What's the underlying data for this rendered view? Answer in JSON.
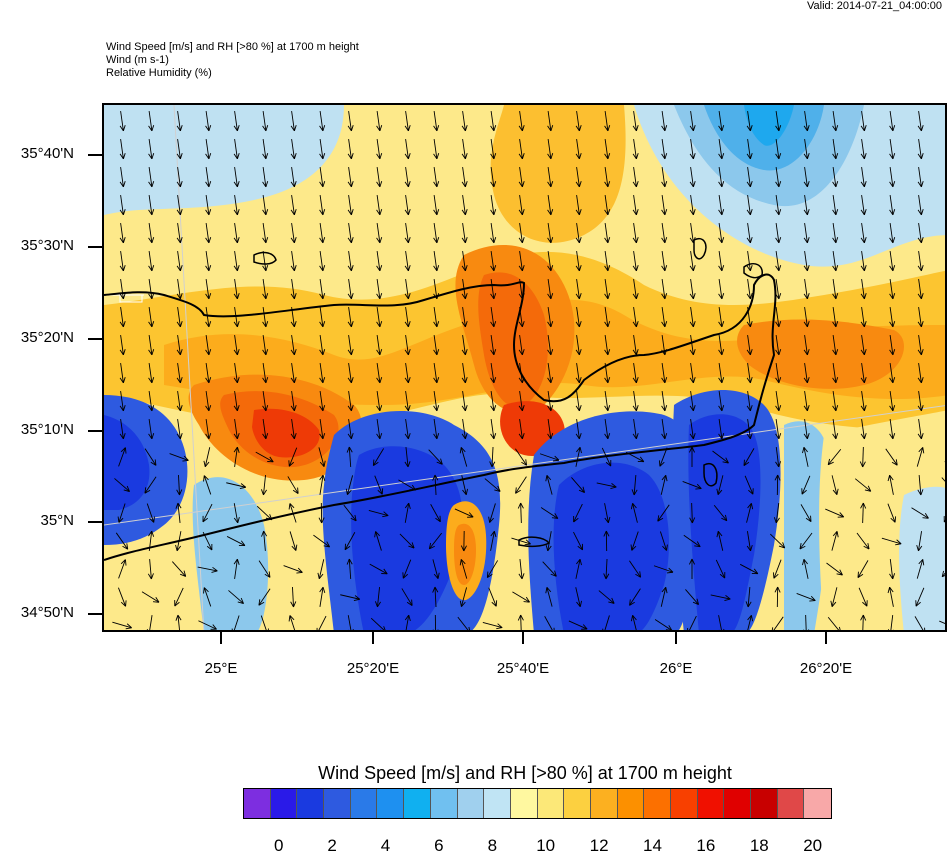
{
  "valid_time": "Valid: 2014-07-21_04:00:00",
  "header": {
    "line1": "Wind Speed [m/s] and RH [>80 %] at 1700 m height",
    "line2": "Wind   (m s-1)",
    "line3": "Relative Humidity   (%)"
  },
  "y_axis_labels": [
    "35°40'N",
    "35°30'N",
    "35°20'N",
    "35°10'N",
    "35°N",
    "34°50'N"
  ],
  "x_axis_labels": [
    "25°E",
    "25°20'E",
    "25°40'E",
    "26°E",
    "26°20'E"
  ],
  "colorbar": {
    "title": "Wind Speed [m/s] and RH [>80 %] at 1700 m height",
    "labels": [
      "0",
      "2",
      "4",
      "6",
      "8",
      "10",
      "12",
      "14",
      "16",
      "18",
      "20"
    ],
    "colors": [
      "#7d2ee0",
      "#2a1ae8",
      "#1a3ae0",
      "#2e5ae0",
      "#2a7ae8",
      "#1e90f0",
      "#10b0f0",
      "#70c0f0",
      "#a0d0ee",
      "#c0e4f4",
      "#fff8a0",
      "#fce878",
      "#fcd040",
      "#fcb020",
      "#fc9000",
      "#fc7000",
      "#f84000",
      "#f01000",
      "#e00000",
      "#c80000",
      "#e04848",
      "#f8a8a8"
    ]
  },
  "map": {
    "field": "wind speed color-filled contours with wind direction arrows",
    "coastline": "Crete"
  }
}
